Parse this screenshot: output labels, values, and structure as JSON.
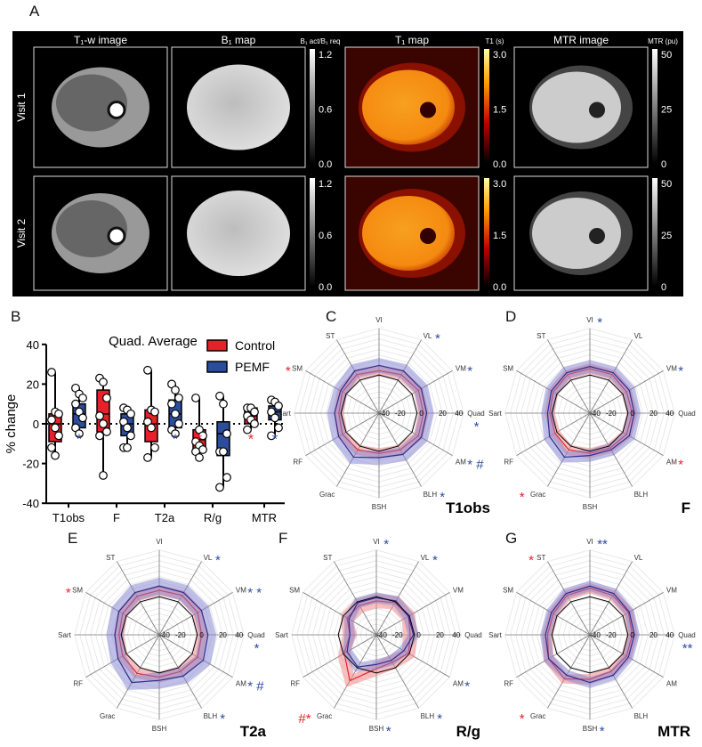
{
  "panel_labels": [
    "A",
    "B",
    "C",
    "D",
    "E",
    "F",
    "G"
  ],
  "panel_a": {
    "columns": [
      "T₁-w image",
      "B₁ map",
      "T₁ map",
      "MTR image"
    ],
    "rows": [
      "Visit 1",
      "Visit 2"
    ],
    "colorbars": [
      {
        "title": "B₁ act/B₁ req",
        "ticks": [
          "1.2",
          "0.6",
          "0.0"
        ]
      },
      {
        "title": "T1 (s)",
        "ticks": [
          "3.0",
          "1.5",
          "0.0"
        ]
      },
      {
        "title": "MTR (pu)",
        "ticks": [
          "50",
          "25",
          "0"
        ]
      }
    ]
  },
  "chart_data": [
    {
      "type": "box",
      "title": "Quad.  Average",
      "ylabel": "% change",
      "ylim": [
        -40,
        40
      ],
      "yticks": [
        "40",
        "20",
        "0",
        "-20",
        "-40"
      ],
      "categories": [
        "T1obs",
        "F",
        "T2a",
        "R/g",
        "MTR"
      ],
      "legend": {
        "placement": "top-right",
        "entries": [
          "Control",
          "PEMF"
        ]
      },
      "colors": {
        "Control": "#e8202a",
        "PEMF": "#2c4d9e"
      },
      "series": [
        {
          "name": "Control",
          "boxes": [
            {
              "min": -16,
              "q1": -9,
              "median": 0,
              "q3": 5,
              "max": 26,
              "points": [
                26,
                6,
                5,
                2,
                -2,
                -6,
                -12,
                -16
              ]
            },
            {
              "min": -26,
              "q1": -4,
              "median": 5,
              "q3": 17,
              "max": 23,
              "points": [
                23,
                21,
                13,
                4,
                0,
                -4,
                -6,
                -26
              ]
            },
            {
              "min": -17,
              "q1": -9,
              "median": 0,
              "q3": 7,
              "max": 27,
              "points": [
                27,
                7,
                6,
                1,
                -2,
                -12,
                -17
              ]
            },
            {
              "min": -17,
              "q1": -13,
              "median": -8,
              "q3": -3,
              "max": 13,
              "points": [
                13,
                -3,
                -6,
                -9,
                -11,
                -13,
                -14,
                -17
              ]
            },
            {
              "min": -3,
              "q1": 0,
              "median": 4,
              "q3": 8,
              "max": 8,
              "points": [
                8,
                8,
                6,
                4,
                2,
                0,
                -3
              ]
            }
          ],
          "significance": [
            "",
            "",
            "",
            "*",
            "*"
          ]
        },
        {
          "name": "PEMF",
          "boxes": [
            {
              "min": -5,
              "q1": -2,
              "median": 5,
              "q3": 10,
              "max": 18,
              "points": [
                18,
                15,
                13,
                10,
                6,
                3,
                -2,
                -5
              ]
            },
            {
              "min": -12,
              "q1": -6,
              "median": 0,
              "q3": 5,
              "max": 8,
              "points": [
                8,
                7,
                5,
                1,
                -2,
                -6,
                -12,
                -12
              ]
            },
            {
              "min": -5,
              "q1": -2,
              "median": 5,
              "q3": 12,
              "max": 20,
              "points": [
                20,
                17,
                13,
                10,
                5,
                0,
                -3,
                -5
              ]
            },
            {
              "min": -32,
              "q1": -16,
              "median": -5,
              "q3": 1,
              "max": 14,
              "points": [
                14,
                10,
                -5,
                -14,
                -14,
                -27,
                -32
              ]
            },
            {
              "min": -6,
              "q1": 2,
              "median": 6,
              "q3": 9,
              "max": 12,
              "points": [
                12,
                11,
                9,
                6,
                3,
                -2,
                -6
              ]
            }
          ],
          "significance": [
            "*",
            "",
            "*",
            "",
            "*"
          ]
        }
      ]
    },
    {
      "type": "radar",
      "panel": "C",
      "title": "T1obs",
      "axes": [
        "VI",
        "VL",
        "VM",
        "Quad",
        "AM",
        "BLH",
        "BSH",
        "Grac",
        "RF",
        "Sart",
        "SM",
        "ST"
      ],
      "rlim": [
        -40,
        40
      ],
      "rticks": [
        "-40",
        "-20",
        "0",
        "20",
        "40"
      ],
      "series": [
        {
          "name": "Control",
          "values": [
            0,
            2,
            3,
            2,
            3,
            0,
            -2,
            0,
            0,
            -2,
            0,
            2
          ],
          "spread": 5
        },
        {
          "name": "PEMF",
          "values": [
            5,
            6,
            6,
            5,
            6,
            5,
            2,
            8,
            4,
            2,
            2,
            6
          ],
          "spread": 7
        }
      ],
      "annotations": [
        {
          "axis": "SM",
          "text": "*",
          "color": "#e8202a"
        },
        {
          "axis": "VL",
          "text": "*",
          "color": "#2c4d9e"
        },
        {
          "axis": "VM",
          "text": "*",
          "color": "#2c4d9e"
        },
        {
          "axis": "Quad",
          "text": "*",
          "color": "#2c4d9e"
        },
        {
          "axis": "AM",
          "text": "* #",
          "color": "#2c4d9e"
        },
        {
          "axis": "BLH",
          "text": "*",
          "color": "#2c4d9e"
        }
      ]
    },
    {
      "type": "radar",
      "panel": "D",
      "title": "F",
      "axes": [
        "VI",
        "VL",
        "VM",
        "Quad",
        "AM",
        "BLH",
        "BSH",
        "Grac",
        "RF",
        "Sart",
        "SM",
        "ST"
      ],
      "rlim": [
        -40,
        40
      ],
      "rticks": [
        "-40",
        "-20",
        "0",
        "20",
        "40"
      ],
      "series": [
        {
          "name": "Control",
          "values": [
            2,
            2,
            0,
            0,
            0,
            -2,
            -2,
            0,
            -2,
            -2,
            0,
            2
          ],
          "spread": 5
        },
        {
          "name": "PEMF",
          "values": [
            4,
            4,
            3,
            2,
            3,
            0,
            0,
            8,
            4,
            0,
            2,
            4
          ],
          "spread": 6
        }
      ],
      "annotations": [
        {
          "axis": "VI",
          "text": "*",
          "color": "#2c4d9e"
        },
        {
          "axis": "VM",
          "text": "*",
          "color": "#2c4d9e"
        },
        {
          "axis": "AM",
          "text": "*",
          "color": "#e8202a"
        },
        {
          "axis": "Grac",
          "text": "*",
          "color": "#e8202a"
        }
      ]
    },
    {
      "type": "radar",
      "panel": "E",
      "title": "T2a",
      "axes": [
        "VI",
        "VL",
        "VM",
        "Quad",
        "AM",
        "BLH",
        "BSH",
        "Grac",
        "RF",
        "Sart",
        "SM",
        "ST"
      ],
      "rlim": [
        -40,
        40
      ],
      "rticks": [
        "-40",
        "-20",
        "0",
        "20",
        "40"
      ],
      "series": [
        {
          "name": "Control",
          "values": [
            2,
            3,
            2,
            0,
            2,
            0,
            0,
            2,
            0,
            -2,
            0,
            2
          ],
          "spread": 5
        },
        {
          "name": "PEMF",
          "values": [
            6,
            6,
            6,
            6,
            8,
            5,
            3,
            12,
            5,
            2,
            4,
            6
          ],
          "spread": 8
        }
      ],
      "annotations": [
        {
          "axis": "SM",
          "text": "*",
          "color": "#e8202a"
        },
        {
          "axis": "VL",
          "text": "*",
          "color": "#2c4d9e"
        },
        {
          "axis": "VM",
          "text": "*   *",
          "color": "#2c4d9e"
        },
        {
          "axis": "Quad",
          "text": "*",
          "color": "#2c4d9e"
        },
        {
          "axis": "AM",
          "text": "* #",
          "color": "#2c4d9e"
        },
        {
          "axis": "BLH",
          "text": "*",
          "color": "#2c4d9e"
        }
      ]
    },
    {
      "type": "radar",
      "panel": "F",
      "title": "R/g",
      "axes": [
        "VI",
        "VL",
        "VM",
        "Quad",
        "AM",
        "BLH",
        "BSH",
        "Grac",
        "RF",
        "Sart",
        "SM",
        "ST"
      ],
      "rlim": [
        -40,
        40
      ],
      "rticks": [
        "-40",
        "-20",
        "0",
        "20",
        "40"
      ],
      "series": [
        {
          "name": "Control",
          "values": [
            -8,
            -5,
            -5,
            -8,
            -5,
            -10,
            -8,
            10,
            -5,
            -15,
            -8,
            -8
          ],
          "spread": 7
        },
        {
          "name": "PEMF",
          "values": [
            -5,
            -3,
            -5,
            -5,
            -10,
            -12,
            -12,
            -5,
            -8,
            -15,
            -10,
            -5
          ],
          "spread": 5
        }
      ],
      "annotations": [
        {
          "axis": "VI",
          "text": "*",
          "color": "#2c4d9e"
        },
        {
          "axis": "VL",
          "text": "*",
          "color": "#2c4d9e"
        },
        {
          "axis": "AM",
          "text": "*",
          "color": "#2c4d9e"
        },
        {
          "axis": "BLH",
          "text": "*",
          "color": "#2c4d9e"
        },
        {
          "axis": "BSH",
          "text": "*",
          "color": "#2c4d9e"
        },
        {
          "axis": "Grac",
          "text": "#*",
          "color": "#e8202a"
        }
      ]
    },
    {
      "type": "radar",
      "panel": "G",
      "title": "MTR",
      "axes": [
        "VI",
        "VL",
        "VM",
        "Quad",
        "AM",
        "BLH",
        "BSH",
        "Grac",
        "RF",
        "Sart",
        "SM",
        "ST"
      ],
      "rlim": [
        -40,
        40
      ],
      "rticks": [
        "-40",
        "-20",
        "0",
        "20",
        "40"
      ],
      "series": [
        {
          "name": "Control",
          "values": [
            4,
            3,
            2,
            0,
            0,
            0,
            2,
            8,
            5,
            0,
            0,
            3
          ],
          "spread": 5
        },
        {
          "name": "PEMF",
          "values": [
            6,
            5,
            3,
            2,
            2,
            4,
            5,
            4,
            5,
            2,
            2,
            5
          ],
          "spread": 5
        }
      ],
      "annotations": [
        {
          "axis": "ST",
          "text": "*",
          "color": "#e8202a"
        },
        {
          "axis": "VI",
          "text": "**",
          "color": "#2c4d9e"
        },
        {
          "axis": "Quad",
          "text": "**",
          "color": "#2c4d9e"
        },
        {
          "axis": "Grac",
          "text": "*",
          "color": "#e8202a"
        },
        {
          "axis": "BSH",
          "text": "*",
          "color": "#2c4d9e"
        }
      ]
    }
  ]
}
